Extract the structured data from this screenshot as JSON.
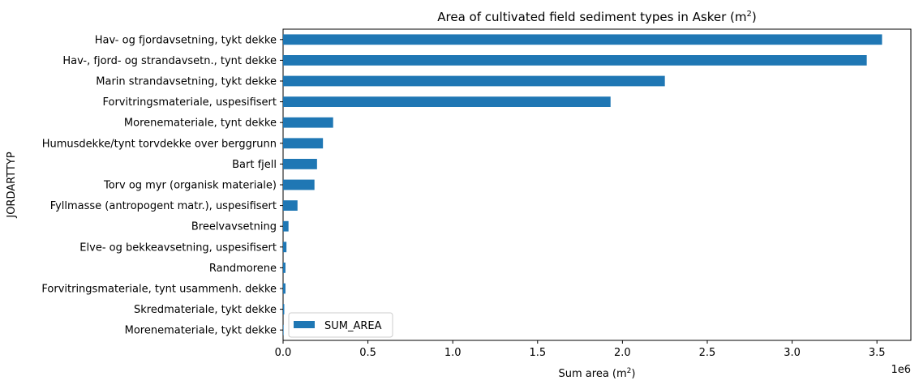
{
  "chart_data": {
    "type": "bar",
    "orientation": "horizontal",
    "title": "Area of cultivated field sediment types in Asker (m",
    "title_sup": "2",
    "title_end": ")",
    "xlabel": "Sum area (m",
    "xlabel_sup": "2",
    "xlabel_end": ")",
    "ylabel": "JORDARTTYP",
    "x_scale_label": "1e6",
    "xlim": [
      0,
      3.7
    ],
    "x_ticks": [
      "0.0",
      "0.5",
      "1.0",
      "1.5",
      "2.0",
      "2.5",
      "3.0",
      "3.5"
    ],
    "bar_color": "#1f77b4",
    "legend": {
      "label": "SUM_AREA",
      "position": "lower-left"
    },
    "categories": [
      "Hav- og fjordavsetning, tykt dekke",
      "Hav-, fjord- og strandavsetn., tynt dekke",
      "Marin strandavsetning, tykt dekke",
      "Forvitringsmateriale, uspesifisert",
      "Morenemateriale, tynt dekke",
      "Humusdekke/tynt torvdekke over berggrunn",
      "Bart fjell",
      "Torv og myr (organisk materiale)",
      "Fyllmasse (antropogent matr.), uspesifisert",
      "Breelvavsetning",
      "Elve- og bekkeavsetning, uspesifisert",
      "Randmorene",
      "Forvitringsmateriale, tynt usammenh. dekke",
      "Skredmateriale, tykt dekke",
      "Morenemateriale, tykt dekke"
    ],
    "series": [
      {
        "name": "SUM_AREA",
        "values": [
          3.53,
          3.44,
          2.25,
          1.93,
          0.295,
          0.235,
          0.2,
          0.185,
          0.085,
          0.032,
          0.02,
          0.014,
          0.014,
          0.007,
          0.003
        ]
      }
    ]
  }
}
